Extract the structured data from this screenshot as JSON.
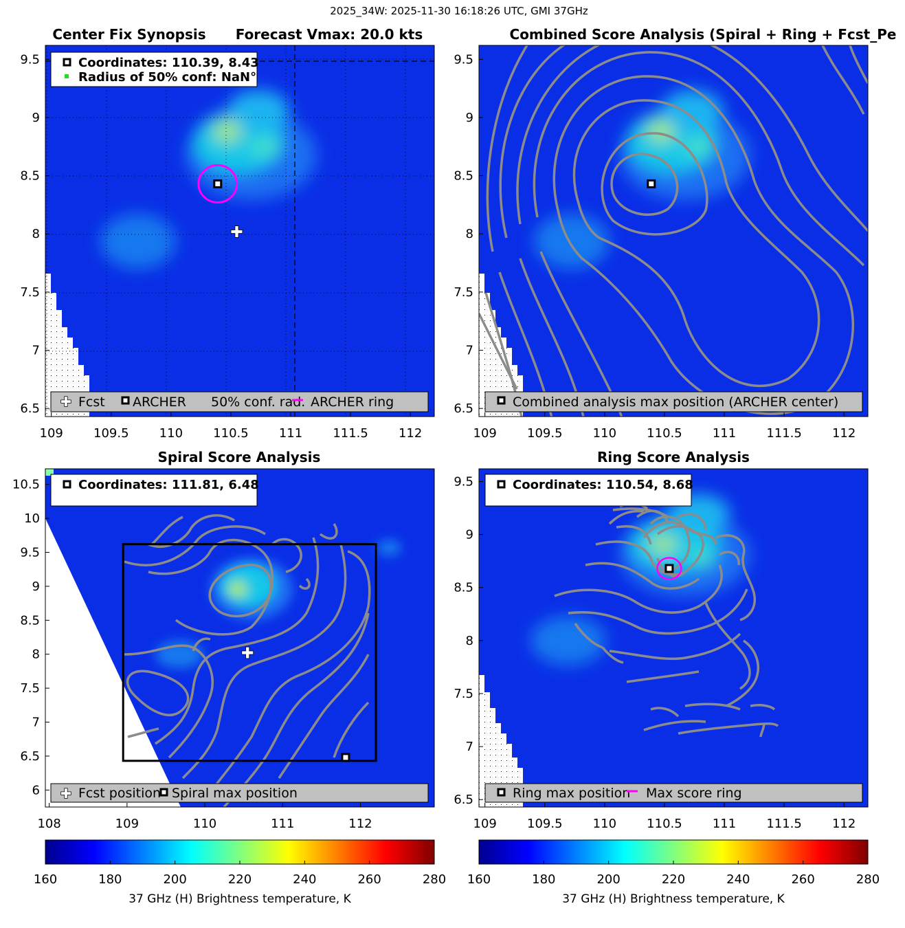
{
  "figure_title": "2025_34W: 2025-11-30 16:18:26 UTC, GMI 37GHz",
  "colors": {
    "background_field": "#0a2ee6",
    "contour": "#8c8c8c",
    "ring": "#ff00ff",
    "legend_bg": "#c0c0c0",
    "missing": "#ffffff"
  },
  "chart_data": [
    {
      "type": "heatmap",
      "panel": "top-left",
      "title_left": "Center Fix Synopsis",
      "title_right": "Forecast Vmax: 20.0 kts",
      "xlim": [
        108.95,
        112.2
      ],
      "ylim": [
        6.43,
        9.62
      ],
      "xticks": [
        109,
        109.5,
        110,
        110.5,
        111,
        111.5,
        112
      ],
      "xtick_labels": [
        "109",
        "109.5",
        "110",
        "110.5",
        "111",
        "111.5",
        "112"
      ],
      "yticks": [
        6.5,
        7,
        7.5,
        8,
        8.5,
        9,
        9.5
      ],
      "ytick_labels": [
        "6.5",
        "7",
        "7.5",
        "8",
        "8.5",
        "9",
        "9.5"
      ],
      "grid": "dotted",
      "info_lines": [
        "Coordinates: 110.39, 8.43",
        "Radius of 50% conf: NaN°"
      ],
      "legend": [
        "Fcst",
        "ARCHER",
        "50% conf. rad.",
        "ARCHER ring"
      ],
      "legend_placement": "bottom",
      "markers": {
        "fcst": [
          110.55,
          8.02
        ],
        "archer": [
          110.39,
          8.43
        ]
      },
      "ring": {
        "center": [
          110.39,
          8.43
        ],
        "radius_deg": 0.16
      },
      "dashed_crosshair": {
        "x": 111.0,
        "y": 9.5
      },
      "hot_spots": [
        {
          "x": 110.45,
          "y": 8.88,
          "tb": 226
        },
        {
          "x": 110.8,
          "y": 8.76,
          "tb": 210
        },
        {
          "x": 110.5,
          "y": 9.15,
          "tb": 196
        },
        {
          "x": 109.7,
          "y": 8.0,
          "tb": 190
        }
      ]
    },
    {
      "type": "heatmap",
      "panel": "top-right",
      "title": "Combined Score Analysis (Spiral + Ring + Fcst_Pe",
      "xlim": [
        108.95,
        112.2
      ],
      "ylim": [
        6.43,
        9.62
      ],
      "xticks": [
        109,
        109.5,
        110,
        110.5,
        111,
        111.5,
        112
      ],
      "xtick_labels": [
        "109",
        "109.5",
        "110",
        "110.5",
        "111",
        "111.5",
        "112"
      ],
      "yticks": [
        6.5,
        7,
        7.5,
        8,
        8.5,
        9,
        9.5
      ],
      "ytick_labels": [
        "6.5",
        "7",
        "7.5",
        "8",
        "8.5",
        "9",
        "9.5"
      ],
      "legend": [
        "Combined analysis max position (ARCHER center)"
      ],
      "legend_placement": "bottom",
      "markers": {
        "combined_max": [
          110.39,
          8.43
        ]
      },
      "contours": "concentric, centered near 110.39, 8.43"
    },
    {
      "type": "heatmap",
      "panel": "bottom-left",
      "title": "Spiral Score Analysis",
      "xlim": [
        107.95,
        112.95
      ],
      "ylim": [
        5.75,
        10.73
      ],
      "xticks": [
        108,
        109,
        110,
        111,
        112
      ],
      "xtick_labels": [
        "108",
        "109",
        "110",
        "111",
        "112"
      ],
      "yticks": [
        6,
        6.5,
        7,
        7.5,
        8,
        8.5,
        9,
        9.5,
        10,
        10.5
      ],
      "ytick_labels": [
        "6",
        "6.5",
        "7",
        "7.5",
        "8",
        "8.5",
        "9",
        "9.5",
        "10",
        "10.5"
      ],
      "info_lines": [
        "Coordinates: 111.81, 6.48"
      ],
      "legend": [
        "Fcst position",
        "Spiral max position"
      ],
      "legend_placement": "bottom",
      "markers": {
        "fcst": [
          110.55,
          8.02
        ],
        "spiral_max": [
          111.81,
          6.48
        ]
      },
      "search_box": {
        "x": [
          108.95,
          112.2
        ],
        "y": [
          6.43,
          9.62
        ]
      }
    },
    {
      "type": "heatmap",
      "panel": "bottom-right",
      "title": "Ring Score Analysis",
      "xlim": [
        108.95,
        112.2
      ],
      "ylim": [
        6.43,
        9.62
      ],
      "xticks": [
        109,
        109.5,
        110,
        110.5,
        111,
        111.5,
        112
      ],
      "xtick_labels": [
        "109",
        "109.5",
        "110",
        "110.5",
        "111",
        "111.5",
        "112"
      ],
      "yticks": [
        6.5,
        7,
        7.5,
        8,
        8.5,
        9,
        9.5
      ],
      "ytick_labels": [
        "6.5",
        "7",
        "7.5",
        "8",
        "8.5",
        "9",
        "9.5"
      ],
      "info_lines": [
        "Coordinates: 110.54, 8.68"
      ],
      "legend": [
        "Ring max position",
        "Max score ring"
      ],
      "legend_placement": "bottom",
      "markers": {
        "ring_max": [
          110.54,
          8.68
        ]
      },
      "ring": {
        "center": [
          110.54,
          8.68
        ],
        "radius_deg": 0.1
      }
    },
    {
      "type": "colorbar",
      "label": "37 GHz (H) Brightness temperature, K",
      "range": [
        160,
        280
      ],
      "ticks": [
        160,
        180,
        200,
        220,
        240,
        260,
        280
      ],
      "tick_labels": [
        "160",
        "180",
        "200",
        "220",
        "240",
        "260",
        "280"
      ],
      "colormap": "jet"
    }
  ]
}
